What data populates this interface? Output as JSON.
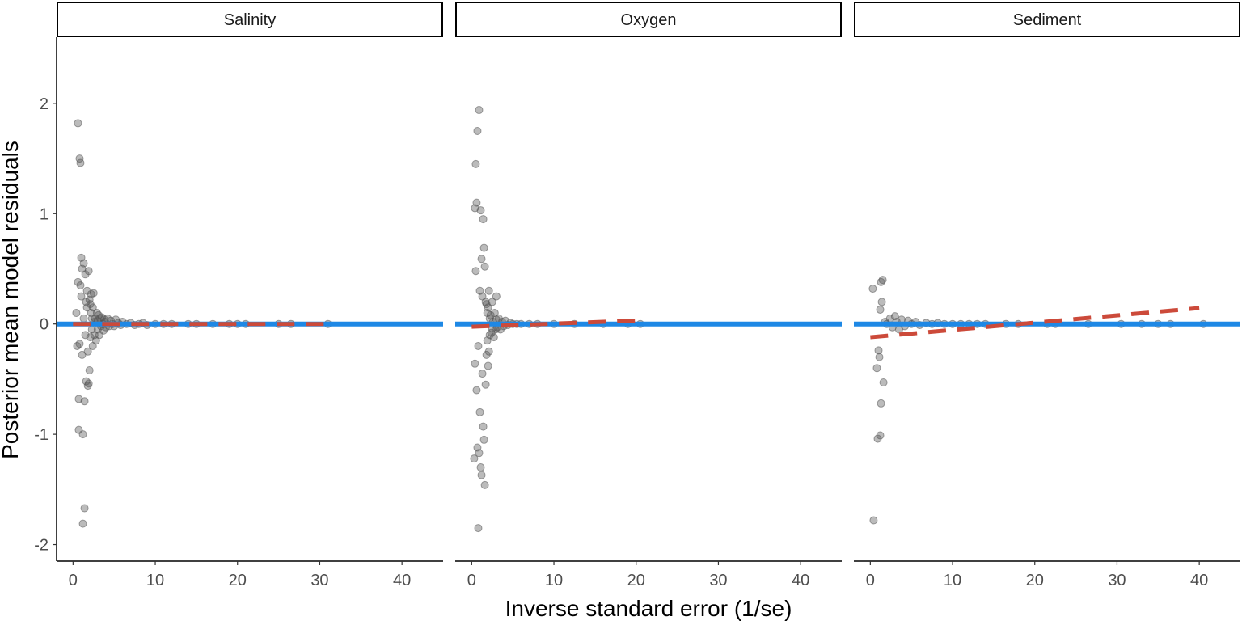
{
  "chart_data": {
    "type": "scatter",
    "title": "",
    "xlabel": "Inverse standard error (1/se)",
    "ylabel": "Posterior mean model residuals",
    "xlim": [
      -2,
      45
    ],
    "ylim": [
      -2.15,
      2.6
    ],
    "xticks": [
      0,
      10,
      20,
      30,
      40
    ],
    "yticks": [
      -2,
      -1,
      0,
      1,
      2
    ],
    "grid": false,
    "legend": "none",
    "colors": {
      "points": "#555555",
      "zero_line": "#1E88E5",
      "fit_line": "#CC4A3A",
      "strip_border": "#000000",
      "axis": "#000000"
    },
    "reference_line": {
      "y": 0
    },
    "panels": [
      {
        "name": "Salinity",
        "fit": {
          "intercept": 0.0,
          "slope": 0.0,
          "x_range": [
            0,
            31
          ]
        },
        "points": [
          [
            0.4,
            0.1
          ],
          [
            0.5,
            -0.2
          ],
          [
            0.6,
            1.82
          ],
          [
            0.6,
            0.38
          ],
          [
            0.7,
            -0.96
          ],
          [
            0.7,
            -0.68
          ],
          [
            0.8,
            1.5
          ],
          [
            0.8,
            -0.18
          ],
          [
            0.9,
            1.46
          ],
          [
            0.9,
            0.35
          ],
          [
            1.0,
            0.6
          ],
          [
            1.0,
            0.25
          ],
          [
            1.1,
            0.5
          ],
          [
            1.1,
            -0.28
          ],
          [
            1.2,
            -1.0
          ],
          [
            1.2,
            -1.81
          ],
          [
            1.3,
            0.55
          ],
          [
            1.3,
            0.05
          ],
          [
            1.4,
            -0.7
          ],
          [
            1.4,
            -1.67
          ],
          [
            1.5,
            0.45
          ],
          [
            1.5,
            -0.1
          ],
          [
            1.6,
            0.2
          ],
          [
            1.6,
            -0.52
          ],
          [
            1.7,
            0.3
          ],
          [
            1.7,
            0.15
          ],
          [
            1.8,
            -0.25
          ],
          [
            1.8,
            -0.56
          ],
          [
            1.9,
            -0.54
          ],
          [
            1.9,
            0.48
          ],
          [
            2.0,
            0.22
          ],
          [
            2.0,
            -0.42
          ],
          [
            2.1,
            0.18
          ],
          [
            2.1,
            -0.12
          ],
          [
            2.2,
            0.27
          ],
          [
            2.2,
            0.1
          ],
          [
            2.3,
            -0.05
          ],
          [
            2.3,
            0.05
          ],
          [
            2.4,
            0.15
          ],
          [
            2.4,
            -0.2
          ],
          [
            2.5,
            0.28
          ],
          [
            2.6,
            0.02
          ],
          [
            2.6,
            -0.1
          ],
          [
            2.7,
            0.05
          ],
          [
            2.8,
            -0.15
          ],
          [
            2.9,
            0.1
          ],
          [
            3.0,
            -0.05
          ],
          [
            3.0,
            0.03
          ],
          [
            3.1,
            0.08
          ],
          [
            3.2,
            -0.1
          ],
          [
            3.3,
            0.05
          ],
          [
            3.4,
            -0.02
          ],
          [
            3.5,
            0.06
          ],
          [
            3.6,
            0.0
          ],
          [
            3.7,
            -0.06
          ],
          [
            3.8,
            0.04
          ],
          [
            3.9,
            0.02
          ],
          [
            4.0,
            -0.03
          ],
          [
            4.2,
            0.05
          ],
          [
            4.4,
            -0.02
          ],
          [
            4.6,
            0.03
          ],
          [
            4.8,
            0.0
          ],
          [
            5.0,
            -0.02
          ],
          [
            5.2,
            0.04
          ],
          [
            5.5,
            0.01
          ],
          [
            5.8,
            -0.01
          ],
          [
            6.0,
            0.02
          ],
          [
            6.5,
            0.0
          ],
          [
            7.0,
            0.01
          ],
          [
            7.5,
            -0.01
          ],
          [
            8.0,
            0.0
          ],
          [
            8.5,
            0.01
          ],
          [
            9.0,
            -0.01
          ],
          [
            10.0,
            0.0
          ],
          [
            11.0,
            0.0
          ],
          [
            12.0,
            0.0
          ],
          [
            14.0,
            0.0
          ],
          [
            15.0,
            0.0
          ],
          [
            17.0,
            0.0
          ],
          [
            19.0,
            0.0
          ],
          [
            20.0,
            0.0
          ],
          [
            21.0,
            0.0
          ],
          [
            25.0,
            0.0
          ],
          [
            26.5,
            0.0
          ],
          [
            31.0,
            0.0
          ]
        ]
      },
      {
        "name": "Oxygen",
        "fit": {
          "intercept": -0.025,
          "slope": 0.0028,
          "x_range": [
            0,
            21
          ]
        },
        "points": [
          [
            0.3,
            -1.22
          ],
          [
            0.4,
            1.05
          ],
          [
            0.4,
            -0.36
          ],
          [
            0.5,
            1.45
          ],
          [
            0.5,
            0.48
          ],
          [
            0.6,
            1.1
          ],
          [
            0.6,
            -0.6
          ],
          [
            0.7,
            1.75
          ],
          [
            0.7,
            -1.12
          ],
          [
            0.8,
            -0.2
          ],
          [
            0.8,
            -1.85
          ],
          [
            0.9,
            1.94
          ],
          [
            0.9,
            -1.17
          ],
          [
            1.0,
            0.3
          ],
          [
            1.0,
            -0.8
          ],
          [
            1.1,
            1.03
          ],
          [
            1.1,
            -1.3
          ],
          [
            1.2,
            0.59
          ],
          [
            1.2,
            -1.37
          ],
          [
            1.3,
            0.25
          ],
          [
            1.3,
            -0.45
          ],
          [
            1.4,
            0.95
          ],
          [
            1.4,
            -0.93
          ],
          [
            1.5,
            0.69
          ],
          [
            1.5,
            -1.05
          ],
          [
            1.6,
            0.52
          ],
          [
            1.6,
            -1.46
          ],
          [
            1.7,
            0.2
          ],
          [
            1.7,
            -0.55
          ],
          [
            1.8,
            0.18
          ],
          [
            1.8,
            -0.28
          ],
          [
            1.9,
            0.1
          ],
          [
            1.9,
            -0.15
          ],
          [
            2.0,
            0.15
          ],
          [
            2.0,
            -0.38
          ],
          [
            2.1,
            0.3
          ],
          [
            2.1,
            -0.25
          ],
          [
            2.2,
            0.05
          ],
          [
            2.2,
            -0.1
          ],
          [
            2.3,
            0.08
          ],
          [
            2.4,
            -0.08
          ],
          [
            2.5,
            0.2
          ],
          [
            2.5,
            -0.04
          ],
          [
            2.6,
            0.02
          ],
          [
            2.7,
            -0.12
          ],
          [
            2.8,
            0.1
          ],
          [
            2.9,
            -0.05
          ],
          [
            3.0,
            0.25
          ],
          [
            3.0,
            0.04
          ],
          [
            3.1,
            -0.03
          ],
          [
            3.3,
            0.05
          ],
          [
            3.5,
            -0.05
          ],
          [
            3.7,
            0.02
          ],
          [
            3.9,
            -0.02
          ],
          [
            4.1,
            0.03
          ],
          [
            4.4,
            -0.01
          ],
          [
            4.7,
            0.01
          ],
          [
            5.0,
            0.0
          ],
          [
            5.5,
            0.0
          ],
          [
            6.0,
            0.0
          ],
          [
            7.0,
            0.0
          ],
          [
            8.0,
            0.0
          ],
          [
            10.0,
            0.0
          ],
          [
            12.5,
            0.0
          ],
          [
            16.0,
            0.0
          ],
          [
            19.0,
            0.0
          ],
          [
            20.5,
            0.0
          ]
        ]
      },
      {
        "name": "Sediment",
        "fit": {
          "intercept": -0.12,
          "slope": 0.0066,
          "x_range": [
            0,
            40
          ]
        },
        "points": [
          [
            0.3,
            0.32
          ],
          [
            0.4,
            -1.78
          ],
          [
            0.8,
            -0.4
          ],
          [
            0.9,
            -1.04
          ],
          [
            1.0,
            -0.24
          ],
          [
            1.1,
            -0.3
          ],
          [
            1.2,
            0.13
          ],
          [
            1.2,
            -1.01
          ],
          [
            1.3,
            0.38
          ],
          [
            1.3,
            -0.72
          ],
          [
            1.4,
            0.2
          ],
          [
            1.5,
            0.4
          ],
          [
            1.6,
            -0.53
          ],
          [
            1.8,
            0.02
          ],
          [
            2.0,
            0.0
          ],
          [
            2.4,
            0.05
          ],
          [
            2.7,
            -0.03
          ],
          [
            3.0,
            0.07
          ],
          [
            3.2,
            0.02
          ],
          [
            3.5,
            -0.05
          ],
          [
            3.8,
            0.04
          ],
          [
            4.2,
            -0.02
          ],
          [
            4.6,
            0.03
          ],
          [
            5.0,
            0.0
          ],
          [
            5.5,
            0.02
          ],
          [
            6.0,
            -0.01
          ],
          [
            6.8,
            0.01
          ],
          [
            7.5,
            0.0
          ],
          [
            8.2,
            0.01
          ],
          [
            9.0,
            0.0
          ],
          [
            10.0,
            0.0
          ],
          [
            11.0,
            0.0
          ],
          [
            12.0,
            0.0
          ],
          [
            13.0,
            0.0
          ],
          [
            14.0,
            0.0
          ],
          [
            16.5,
            0.0
          ],
          [
            18.0,
            0.0
          ],
          [
            21.5,
            0.0
          ],
          [
            22.5,
            0.0
          ],
          [
            26.5,
            0.0
          ],
          [
            30.5,
            0.0
          ],
          [
            33.0,
            0.0
          ],
          [
            35.0,
            0.0
          ],
          [
            36.5,
            0.0
          ],
          [
            40.5,
            0.0
          ]
        ]
      }
    ]
  }
}
